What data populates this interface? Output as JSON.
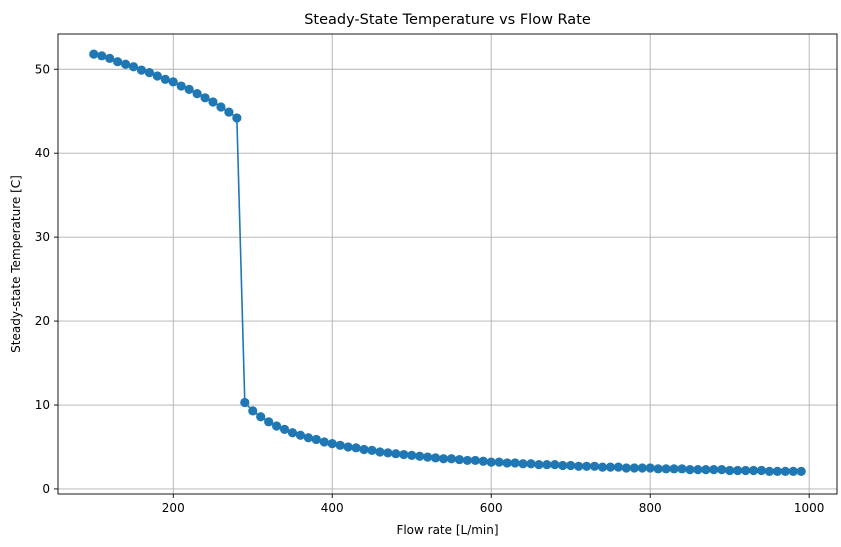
{
  "chart_data": {
    "type": "line",
    "title": "Steady-State Temperature vs Flow Rate",
    "xlabel": "Flow rate [L/min]",
    "ylabel": "Steady-state Temperature [C]",
    "xlim": [
      55,
      1035
    ],
    "ylim": [
      -0.6,
      54.2
    ],
    "xticks": [
      200,
      400,
      600,
      800,
      1000
    ],
    "xtick_labels": [
      "200",
      "400",
      "600",
      "800",
      "1000"
    ],
    "yticks": [
      0,
      10,
      20,
      30,
      40,
      50
    ],
    "ytick_labels": [
      "0",
      "10",
      "20",
      "30",
      "40",
      "50"
    ],
    "grid": true,
    "legend": "none",
    "marker": "circle",
    "colors": {
      "series": "#1f77b4",
      "grid": "#b0b0b0",
      "axes": "#000000"
    },
    "series": [
      {
        "x": [
          100,
          110,
          120,
          130,
          140,
          150,
          160,
          170,
          180,
          190,
          200,
          210,
          220,
          230,
          240,
          250,
          260,
          270,
          280,
          290,
          300,
          310,
          320,
          330,
          340,
          350,
          360,
          370,
          380,
          390,
          400,
          410,
          420,
          430,
          440,
          450,
          460,
          470,
          480,
          490,
          500,
          510,
          520,
          530,
          540,
          550,
          560,
          570,
          580,
          590,
          600,
          610,
          620,
          630,
          640,
          650,
          660,
          670,
          680,
          690,
          700,
          710,
          720,
          730,
          740,
          750,
          760,
          770,
          780,
          790,
          800,
          810,
          820,
          830,
          840,
          850,
          860,
          870,
          880,
          890,
          900,
          910,
          920,
          930,
          940,
          950,
          960,
          970,
          980,
          990
        ],
        "values": [
          51.8,
          51.6,
          51.3,
          50.9,
          50.6,
          50.3,
          49.9,
          49.6,
          49.2,
          48.8,
          48.5,
          48.0,
          47.6,
          47.1,
          46.6,
          46.1,
          45.5,
          44.9,
          44.2,
          10.3,
          9.3,
          8.6,
          8.0,
          7.5,
          7.1,
          6.7,
          6.4,
          6.1,
          5.9,
          5.6,
          5.4,
          5.2,
          5.0,
          4.9,
          4.7,
          4.6,
          4.4,
          4.3,
          4.2,
          4.1,
          4.0,
          3.9,
          3.8,
          3.7,
          3.6,
          3.6,
          3.5,
          3.4,
          3.4,
          3.3,
          3.2,
          3.2,
          3.1,
          3.1,
          3.0,
          3.0,
          2.9,
          2.9,
          2.9,
          2.8,
          2.8,
          2.7,
          2.7,
          2.7,
          2.6,
          2.6,
          2.6,
          2.5,
          2.5,
          2.5,
          2.5,
          2.4,
          2.4,
          2.4,
          2.4,
          2.3,
          2.3,
          2.3,
          2.3,
          2.3,
          2.2,
          2.2,
          2.2,
          2.2,
          2.2,
          2.1,
          2.1,
          2.1,
          2.1,
          2.1
        ]
      }
    ]
  }
}
